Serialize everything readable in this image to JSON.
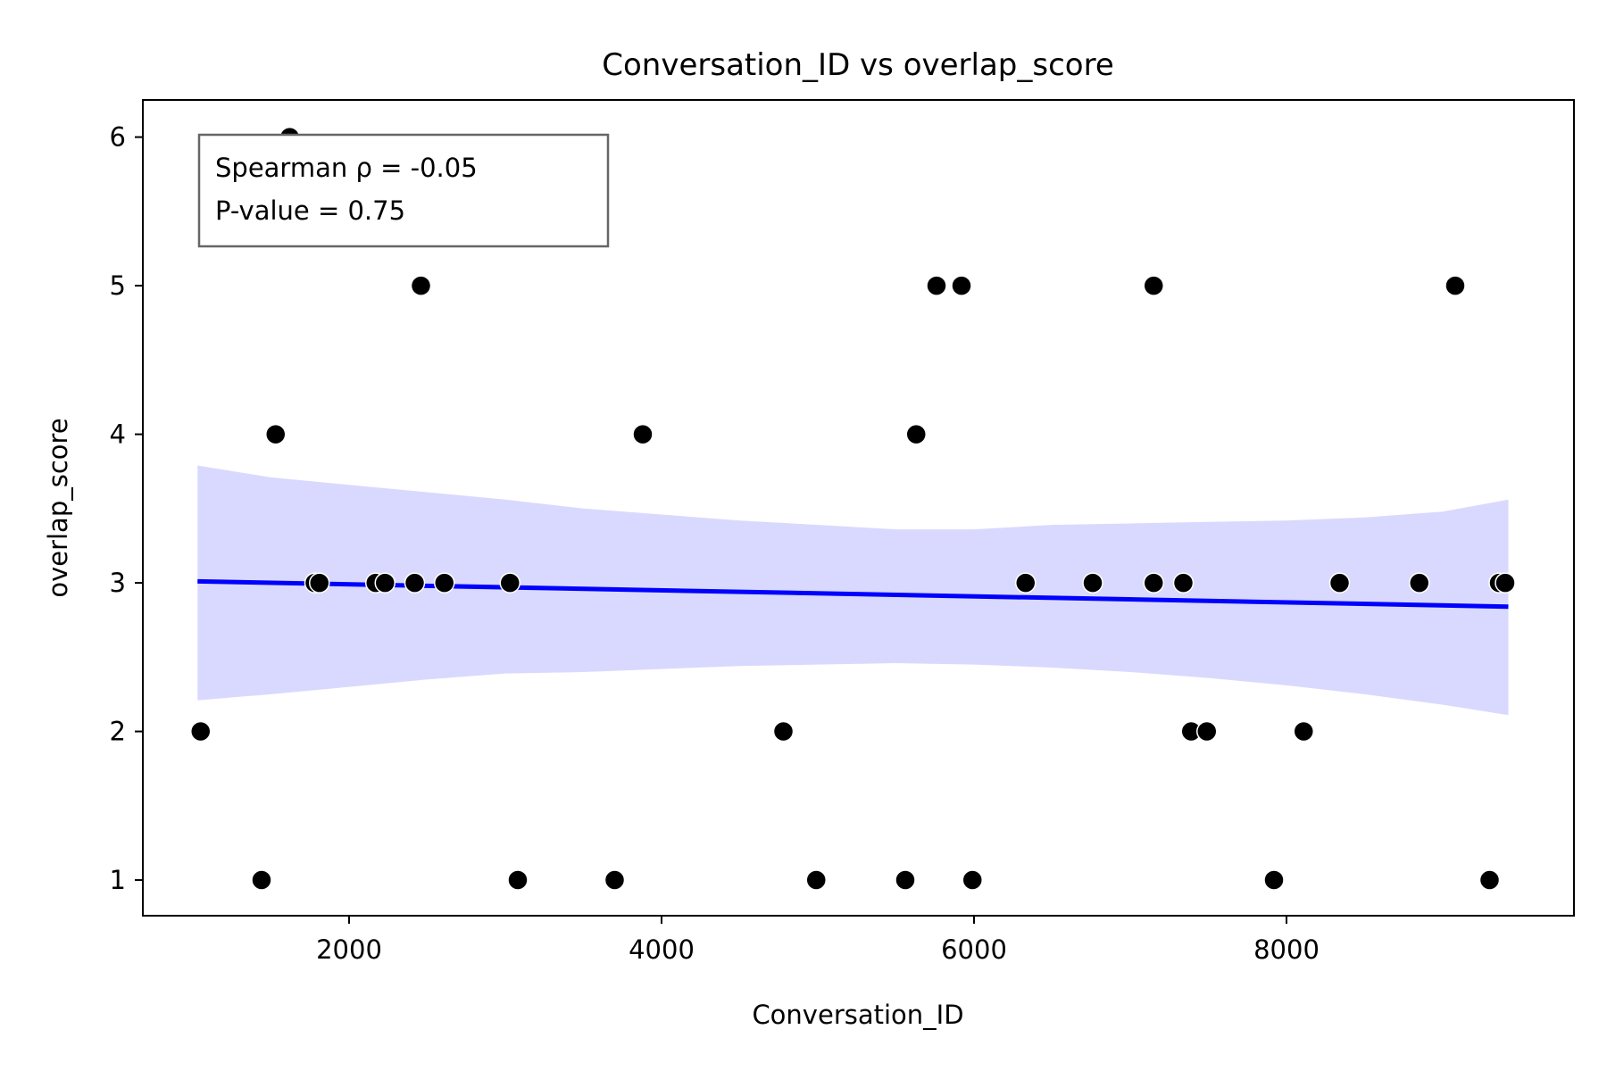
{
  "chart_data": {
    "type": "scatter",
    "title": "Conversation_ID vs overlap_score",
    "xlabel": "Conversation_ID",
    "ylabel": "overlap_score",
    "xlim": [
      680,
      9840
    ],
    "ylim": [
      0.76,
      6.25
    ],
    "x_ticks": [
      2000,
      4000,
      6000,
      8000
    ],
    "y_ticks": [
      1,
      2,
      3,
      4,
      5,
      6
    ],
    "grid": false,
    "points": [
      {
        "x": 1050,
        "y": 2
      },
      {
        "x": 1440,
        "y": 1
      },
      {
        "x": 1530,
        "y": 4
      },
      {
        "x": 1620,
        "y": 6
      },
      {
        "x": 1780,
        "y": 3
      },
      {
        "x": 1810,
        "y": 3
      },
      {
        "x": 2170,
        "y": 3
      },
      {
        "x": 2230,
        "y": 3
      },
      {
        "x": 2420,
        "y": 3
      },
      {
        "x": 2460,
        "y": 5
      },
      {
        "x": 2610,
        "y": 3
      },
      {
        "x": 3030,
        "y": 3
      },
      {
        "x": 3080,
        "y": 1
      },
      {
        "x": 3700,
        "y": 1
      },
      {
        "x": 3880,
        "y": 4
      },
      {
        "x": 4780,
        "y": 2
      },
      {
        "x": 4990,
        "y": 1
      },
      {
        "x": 5560,
        "y": 1
      },
      {
        "x": 5630,
        "y": 4
      },
      {
        "x": 5760,
        "y": 5
      },
      {
        "x": 5920,
        "y": 5
      },
      {
        "x": 5990,
        "y": 1
      },
      {
        "x": 6330,
        "y": 3
      },
      {
        "x": 6760,
        "y": 3
      },
      {
        "x": 7150,
        "y": 3
      },
      {
        "x": 7150,
        "y": 5
      },
      {
        "x": 7340,
        "y": 3
      },
      {
        "x": 7390,
        "y": 2
      },
      {
        "x": 7490,
        "y": 2
      },
      {
        "x": 7920,
        "y": 1
      },
      {
        "x": 8110,
        "y": 2
      },
      {
        "x": 8340,
        "y": 3
      },
      {
        "x": 8850,
        "y": 3
      },
      {
        "x": 9080,
        "y": 5
      },
      {
        "x": 9300,
        "y": 1
      },
      {
        "x": 9360,
        "y": 3
      },
      {
        "x": 9400,
        "y": 3
      }
    ],
    "regression": {
      "x": [
        1030,
        9420
      ],
      "y": [
        3.01,
        2.84
      ]
    },
    "confidence_band": {
      "x": [
        1030,
        1500,
        2000,
        2500,
        3000,
        3500,
        4000,
        4500,
        5000,
        5500,
        6000,
        6500,
        7000,
        7500,
        8000,
        8500,
        9000,
        9420
      ],
      "upper": [
        3.79,
        3.71,
        3.66,
        3.61,
        3.56,
        3.5,
        3.46,
        3.42,
        3.39,
        3.36,
        3.36,
        3.39,
        3.4,
        3.41,
        3.42,
        3.44,
        3.48,
        3.56
      ],
      "lower": [
        2.21,
        2.25,
        2.3,
        2.35,
        2.39,
        2.4,
        2.42,
        2.44,
        2.45,
        2.46,
        2.45,
        2.43,
        2.4,
        2.36,
        2.31,
        2.25,
        2.18,
        2.11
      ]
    },
    "stats_box": {
      "line1": "Spearman ρ = -0.05",
      "line2": "P-value = 0.75"
    },
    "colors": {
      "points": "#000000",
      "line": "#0000ff",
      "band": "#d9d9ff",
      "box_border": "#666666"
    }
  }
}
